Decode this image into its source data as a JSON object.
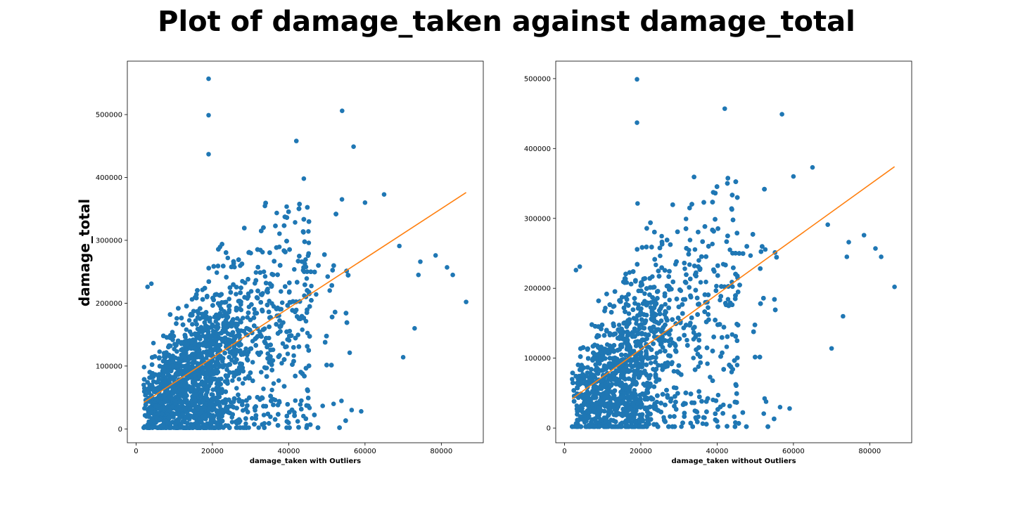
{
  "figure": {
    "title": "Plot of damage_taken against damage_total"
  },
  "colors": {
    "points": "#1f77b4",
    "fit_line": "#ff7f0e",
    "axes": "#000000",
    "background": "#ffffff"
  },
  "chart_data": [
    {
      "type": "scatter",
      "title": "",
      "xlabel": "damage_taken with Outliers",
      "ylabel": "damage_total",
      "xlim": [
        -2300,
        91000
      ],
      "ylim": [
        -22000,
        585000
      ],
      "xticks": [
        0,
        20000,
        40000,
        60000,
        80000
      ],
      "xtick_labels": [
        "0",
        "20000",
        "40000",
        "60000",
        "80000"
      ],
      "yticks": [
        0,
        100000,
        200000,
        300000,
        400000,
        500000
      ],
      "ytick_labels": [
        "0",
        "100000",
        "200000",
        "300000",
        "400000",
        "500000"
      ],
      "grid": false,
      "notable_points": [
        {
          "x": 19000,
          "y": 557000
        },
        {
          "x": 19000,
          "y": 499000
        },
        {
          "x": 54000,
          "y": 506000
        },
        {
          "x": 42000,
          "y": 458000
        },
        {
          "x": 57000,
          "y": 449000
        },
        {
          "x": 19000,
          "y": 437000
        },
        {
          "x": 86500,
          "y": 202000
        },
        {
          "x": 83000,
          "y": 245000
        },
        {
          "x": 81500,
          "y": 257000
        },
        {
          "x": 78500,
          "y": 276000
        },
        {
          "x": 74500,
          "y": 266000
        },
        {
          "x": 74000,
          "y": 245000
        },
        {
          "x": 73000,
          "y": 160000
        },
        {
          "x": 70000,
          "y": 114000
        },
        {
          "x": 69000,
          "y": 291000
        },
        {
          "x": 65000,
          "y": 373000
        },
        {
          "x": 60000,
          "y": 360000
        },
        {
          "x": 59000,
          "y": 28000
        },
        {
          "x": 56500,
          "y": 30000
        },
        {
          "x": 3000,
          "y": 226000
        },
        {
          "x": 4000,
          "y": 231000
        },
        {
          "x": 2000,
          "y": 70000
        }
      ],
      "cloud": {
        "x_range": [
          1500,
          60000
        ],
        "y_range": [
          2000,
          420000
        ],
        "n_points": 4200
      },
      "fit_line": {
        "x": [
          2000,
          86500
        ],
        "y": [
          42000,
          376000
        ]
      }
    },
    {
      "type": "scatter",
      "title": "",
      "xlabel": "damage_taken without Outliers",
      "ylabel": "",
      "xlim": [
        -2300,
        91000
      ],
      "ylim": [
        -21000,
        525000
      ],
      "xticks": [
        0,
        20000,
        40000,
        60000,
        80000
      ],
      "xtick_labels": [
        "0",
        "20000",
        "40000",
        "60000",
        "80000"
      ],
      "yticks": [
        0,
        100000,
        200000,
        300000,
        400000,
        500000
      ],
      "ytick_labels": [
        "0",
        "100000",
        "200000",
        "300000",
        "400000",
        "500000"
      ],
      "grid": false,
      "notable_points": [
        {
          "x": 19000,
          "y": 499000
        },
        {
          "x": 42000,
          "y": 457000
        },
        {
          "x": 57000,
          "y": 449000
        },
        {
          "x": 19000,
          "y": 437000
        },
        {
          "x": 86500,
          "y": 202000
        },
        {
          "x": 83000,
          "y": 245000
        },
        {
          "x": 81500,
          "y": 257000
        },
        {
          "x": 78500,
          "y": 276000
        },
        {
          "x": 74500,
          "y": 266000
        },
        {
          "x": 74000,
          "y": 245000
        },
        {
          "x": 73000,
          "y": 160000
        },
        {
          "x": 70000,
          "y": 114000
        },
        {
          "x": 69000,
          "y": 291000
        },
        {
          "x": 65000,
          "y": 373000
        },
        {
          "x": 60000,
          "y": 360000
        },
        {
          "x": 59000,
          "y": 28000
        },
        {
          "x": 56500,
          "y": 30000
        },
        {
          "x": 3000,
          "y": 226000
        },
        {
          "x": 4000,
          "y": 231000
        },
        {
          "x": 2000,
          "y": 70000
        }
      ],
      "cloud": {
        "x_range": [
          1500,
          60000
        ],
        "y_range": [
          2000,
          420000
        ],
        "n_points": 4200
      },
      "fit_line": {
        "x": [
          2000,
          86500
        ],
        "y": [
          42000,
          374000
        ]
      }
    }
  ]
}
